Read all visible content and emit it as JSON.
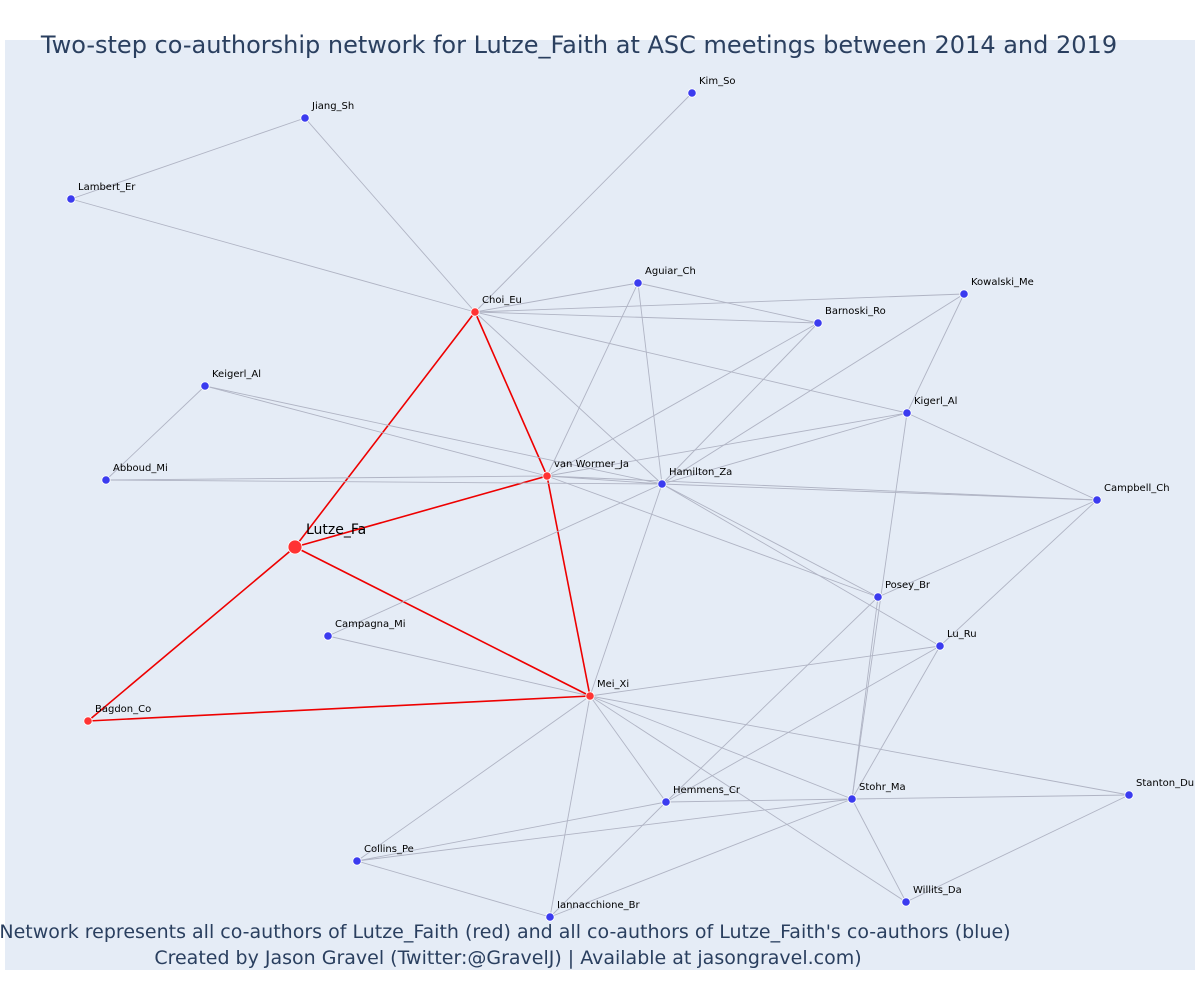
{
  "title": "Two-step co-authorship network for Lutze_Faith at ASC meetings between 2014 and 2019",
  "caption": {
    "line1": "Network represents all co-authors of Lutze_Faith (red) and all co-authors of Lutze_Faith's co-authors (blue)",
    "line2": "Created by Jason Gravel (Twitter:@GravelJ) | Available at jasongravel.com)"
  },
  "colors": {
    "plot_background": "#e5ecf6",
    "focal_node": "#ff3333",
    "coauthor_node": "#ff3333",
    "second_step_node": "#3b3bef",
    "focal_edge": "#ee0000",
    "other_edge": "#b0b4c4"
  },
  "nodes": [
    {
      "id": "Lutze_Fa",
      "label": "Lutze_Fa",
      "group": "focal"
    },
    {
      "id": "Choi_Eu",
      "label": "Choi_Eu",
      "group": "coauthor"
    },
    {
      "id": "van Wormer_Ja",
      "label": "van Wormer_Ja",
      "group": "coauthor"
    },
    {
      "id": "Mei_Xi",
      "label": "Mei_Xi",
      "group": "coauthor"
    },
    {
      "id": "Bagdon_Co",
      "label": "Bagdon_Co",
      "group": "coauthor"
    },
    {
      "id": "Kim_So",
      "label": "Kim_So",
      "group": "second"
    },
    {
      "id": "Jiang_Sh",
      "label": "Jiang_Sh",
      "group": "second"
    },
    {
      "id": "Lambert_Er",
      "label": "Lambert_Er",
      "group": "second"
    },
    {
      "id": "Aguiar_Ch",
      "label": "Aguiar_Ch",
      "group": "second"
    },
    {
      "id": "Kowalski_Me",
      "label": "Kowalski_Me",
      "group": "second"
    },
    {
      "id": "Barnoski_Ro",
      "label": "Barnoski_Ro",
      "group": "second"
    },
    {
      "id": "Keigerl_Al",
      "label": "Keigerl_Al",
      "group": "second"
    },
    {
      "id": "Kigerl_Al",
      "label": "Kigerl_Al",
      "group": "second"
    },
    {
      "id": "Abboud_Mi",
      "label": "Abboud_Mi",
      "group": "second"
    },
    {
      "id": "Hamilton_Za",
      "label": "Hamilton_Za",
      "group": "second"
    },
    {
      "id": "Campbell_Ch",
      "label": "Campbell_Ch",
      "group": "second"
    },
    {
      "id": "Posey_Br",
      "label": "Posey_Br",
      "group": "second"
    },
    {
      "id": "Campagna_Mi",
      "label": "Campagna_Mi",
      "group": "second"
    },
    {
      "id": "Lu_Ru",
      "label": "Lu_Ru",
      "group": "second"
    },
    {
      "id": "Hemmens_Cr",
      "label": "Hemmens_Cr",
      "group": "second"
    },
    {
      "id": "Stohr_Ma",
      "label": "Stohr_Ma",
      "group": "second"
    },
    {
      "id": "Stanton_Du",
      "label": "Stanton_Du",
      "group": "second"
    },
    {
      "id": "Collins_Pe",
      "label": "Collins_Pe",
      "group": "second"
    },
    {
      "id": "Willits_Da",
      "label": "Willits_Da",
      "group": "second"
    },
    {
      "id": "Iannacchione_Br",
      "label": "Iannacchione_Br",
      "group": "second"
    }
  ],
  "edges": [
    [
      "Lutze_Fa",
      "Choi_Eu"
    ],
    [
      "Lutze_Fa",
      "van Wormer_Ja"
    ],
    [
      "Lutze_Fa",
      "Mei_Xi"
    ],
    [
      "Lutze_Fa",
      "Bagdon_Co"
    ],
    [
      "Choi_Eu",
      "van Wormer_Ja"
    ],
    [
      "van Wormer_Ja",
      "Mei_Xi"
    ],
    [
      "Bagdon_Co",
      "Mei_Xi"
    ],
    [
      "Choi_Eu",
      "Kim_So"
    ],
    [
      "Choi_Eu",
      "Jiang_Sh"
    ],
    [
      "Choi_Eu",
      "Lambert_Er"
    ],
    [
      "Jiang_Sh",
      "Lambert_Er"
    ],
    [
      "Choi_Eu",
      "Aguiar_Ch"
    ],
    [
      "Choi_Eu",
      "Barnoski_Ro"
    ],
    [
      "Choi_Eu",
      "Kowalski_Me"
    ],
    [
      "Choi_Eu",
      "Kigerl_Al"
    ],
    [
      "Choi_Eu",
      "Hamilton_Za"
    ],
    [
      "Aguiar_Ch",
      "Barnoski_Ro"
    ],
    [
      "Aguiar_Ch",
      "van Wormer_Ja"
    ],
    [
      "Aguiar_Ch",
      "Hamilton_Za"
    ],
    [
      "Barnoski_Ro",
      "van Wormer_Ja"
    ],
    [
      "Barnoski_Ro",
      "Hamilton_Za"
    ],
    [
      "Kowalski_Me",
      "Hamilton_Za"
    ],
    [
      "Kowalski_Me",
      "Kigerl_Al"
    ],
    [
      "Keigerl_Al",
      "Abboud_Mi"
    ],
    [
      "Keigerl_Al",
      "van Wormer_Ja"
    ],
    [
      "Keigerl_Al",
      "Hamilton_Za"
    ],
    [
      "Abboud_Mi",
      "van Wormer_Ja"
    ],
    [
      "Abboud_Mi",
      "Hamilton_Za"
    ],
    [
      "van Wormer_Ja",
      "Hamilton_Za"
    ],
    [
      "van Wormer_Ja",
      "Kigerl_Al"
    ],
    [
      "van Wormer_Ja",
      "Campbell_Ch"
    ],
    [
      "van Wormer_Ja",
      "Posey_Br"
    ],
    [
      "Hamilton_Za",
      "Kigerl_Al"
    ],
    [
      "Hamilton_Za",
      "Campbell_Ch"
    ],
    [
      "Hamilton_Za",
      "Posey_Br"
    ],
    [
      "Hamilton_Za",
      "Lu_Ru"
    ],
    [
      "Hamilton_Za",
      "Campagna_Mi"
    ],
    [
      "Hamilton_Za",
      "Mei_Xi"
    ],
    [
      "Kigerl_Al",
      "Campbell_Ch"
    ],
    [
      "Kigerl_Al",
      "Stohr_Ma"
    ],
    [
      "Campbell_Ch",
      "Posey_Br"
    ],
    [
      "Campbell_Ch",
      "Lu_Ru"
    ],
    [
      "Posey_Br",
      "Hemmens_Cr"
    ],
    [
      "Posey_Br",
      "Stohr_Ma"
    ],
    [
      "Campagna_Mi",
      "Mei_Xi"
    ],
    [
      "Mei_Xi",
      "Lu_Ru"
    ],
    [
      "Mei_Xi",
      "Hemmens_Cr"
    ],
    [
      "Mei_Xi",
      "Stohr_Ma"
    ],
    [
      "Mei_Xi",
      "Stanton_Du"
    ],
    [
      "Mei_Xi",
      "Willits_Da"
    ],
    [
      "Mei_Xi",
      "Collins_Pe"
    ],
    [
      "Mei_Xi",
      "Iannacchione_Br"
    ],
    [
      "Lu_Ru",
      "Hemmens_Cr"
    ],
    [
      "Lu_Ru",
      "Stohr_Ma"
    ],
    [
      "Hemmens_Cr",
      "Stohr_Ma"
    ],
    [
      "Hemmens_Cr",
      "Collins_Pe"
    ],
    [
      "Hemmens_Cr",
      "Iannacchione_Br"
    ],
    [
      "Stohr_Ma",
      "Stanton_Du"
    ],
    [
      "Stohr_Ma",
      "Collins_Pe"
    ],
    [
      "Stohr_Ma",
      "Willits_Da"
    ],
    [
      "Stohr_Ma",
      "Iannacchione_Br"
    ],
    [
      "Stanton_Du",
      "Willits_Da"
    ],
    [
      "Collins_Pe",
      "Iannacchione_Br"
    ]
  ]
}
